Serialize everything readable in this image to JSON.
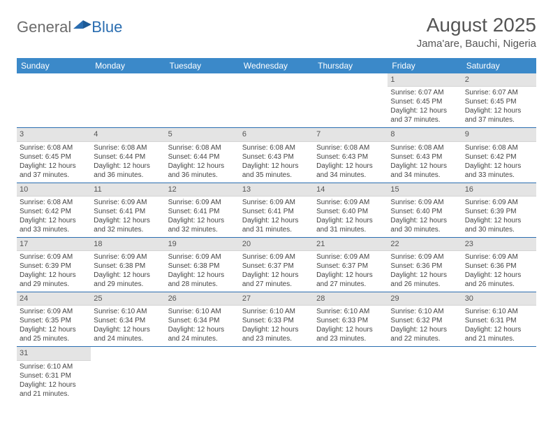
{
  "logo": {
    "text1": "General",
    "text2": "Blue"
  },
  "title": "August 2025",
  "location": "Jama'are, Bauchi, Nigeria",
  "colors": {
    "header_bg": "#3b89c9",
    "header_text": "#ffffff",
    "border": "#2a6db0",
    "daynum_bg": "#e4e4e4",
    "text": "#444444"
  },
  "weekdays": [
    "Sunday",
    "Monday",
    "Tuesday",
    "Wednesday",
    "Thursday",
    "Friday",
    "Saturday"
  ],
  "weeks": [
    [
      null,
      null,
      null,
      null,
      null,
      {
        "n": "1",
        "sr": "6:07 AM",
        "ss": "6:45 PM",
        "dh": "12",
        "dm": "37"
      },
      {
        "n": "2",
        "sr": "6:07 AM",
        "ss": "6:45 PM",
        "dh": "12",
        "dm": "37"
      }
    ],
    [
      {
        "n": "3",
        "sr": "6:08 AM",
        "ss": "6:45 PM",
        "dh": "12",
        "dm": "37"
      },
      {
        "n": "4",
        "sr": "6:08 AM",
        "ss": "6:44 PM",
        "dh": "12",
        "dm": "36"
      },
      {
        "n": "5",
        "sr": "6:08 AM",
        "ss": "6:44 PM",
        "dh": "12",
        "dm": "36"
      },
      {
        "n": "6",
        "sr": "6:08 AM",
        "ss": "6:43 PM",
        "dh": "12",
        "dm": "35"
      },
      {
        "n": "7",
        "sr": "6:08 AM",
        "ss": "6:43 PM",
        "dh": "12",
        "dm": "34"
      },
      {
        "n": "8",
        "sr": "6:08 AM",
        "ss": "6:43 PM",
        "dh": "12",
        "dm": "34"
      },
      {
        "n": "9",
        "sr": "6:08 AM",
        "ss": "6:42 PM",
        "dh": "12",
        "dm": "33"
      }
    ],
    [
      {
        "n": "10",
        "sr": "6:08 AM",
        "ss": "6:42 PM",
        "dh": "12",
        "dm": "33"
      },
      {
        "n": "11",
        "sr": "6:09 AM",
        "ss": "6:41 PM",
        "dh": "12",
        "dm": "32"
      },
      {
        "n": "12",
        "sr": "6:09 AM",
        "ss": "6:41 PM",
        "dh": "12",
        "dm": "32"
      },
      {
        "n": "13",
        "sr": "6:09 AM",
        "ss": "6:41 PM",
        "dh": "12",
        "dm": "31"
      },
      {
        "n": "14",
        "sr": "6:09 AM",
        "ss": "6:40 PM",
        "dh": "12",
        "dm": "31"
      },
      {
        "n": "15",
        "sr": "6:09 AM",
        "ss": "6:40 PM",
        "dh": "12",
        "dm": "30"
      },
      {
        "n": "16",
        "sr": "6:09 AM",
        "ss": "6:39 PM",
        "dh": "12",
        "dm": "30"
      }
    ],
    [
      {
        "n": "17",
        "sr": "6:09 AM",
        "ss": "6:39 PM",
        "dh": "12",
        "dm": "29"
      },
      {
        "n": "18",
        "sr": "6:09 AM",
        "ss": "6:38 PM",
        "dh": "12",
        "dm": "29"
      },
      {
        "n": "19",
        "sr": "6:09 AM",
        "ss": "6:38 PM",
        "dh": "12",
        "dm": "28"
      },
      {
        "n": "20",
        "sr": "6:09 AM",
        "ss": "6:37 PM",
        "dh": "12",
        "dm": "27"
      },
      {
        "n": "21",
        "sr": "6:09 AM",
        "ss": "6:37 PM",
        "dh": "12",
        "dm": "27"
      },
      {
        "n": "22",
        "sr": "6:09 AM",
        "ss": "6:36 PM",
        "dh": "12",
        "dm": "26"
      },
      {
        "n": "23",
        "sr": "6:09 AM",
        "ss": "6:36 PM",
        "dh": "12",
        "dm": "26"
      }
    ],
    [
      {
        "n": "24",
        "sr": "6:09 AM",
        "ss": "6:35 PM",
        "dh": "12",
        "dm": "25"
      },
      {
        "n": "25",
        "sr": "6:10 AM",
        "ss": "6:34 PM",
        "dh": "12",
        "dm": "24"
      },
      {
        "n": "26",
        "sr": "6:10 AM",
        "ss": "6:34 PM",
        "dh": "12",
        "dm": "24"
      },
      {
        "n": "27",
        "sr": "6:10 AM",
        "ss": "6:33 PM",
        "dh": "12",
        "dm": "23"
      },
      {
        "n": "28",
        "sr": "6:10 AM",
        "ss": "6:33 PM",
        "dh": "12",
        "dm": "23"
      },
      {
        "n": "29",
        "sr": "6:10 AM",
        "ss": "6:32 PM",
        "dh": "12",
        "dm": "22"
      },
      {
        "n": "30",
        "sr": "6:10 AM",
        "ss": "6:31 PM",
        "dh": "12",
        "dm": "21"
      }
    ],
    [
      {
        "n": "31",
        "sr": "6:10 AM",
        "ss": "6:31 PM",
        "dh": "12",
        "dm": "21"
      },
      null,
      null,
      null,
      null,
      null,
      null
    ]
  ]
}
